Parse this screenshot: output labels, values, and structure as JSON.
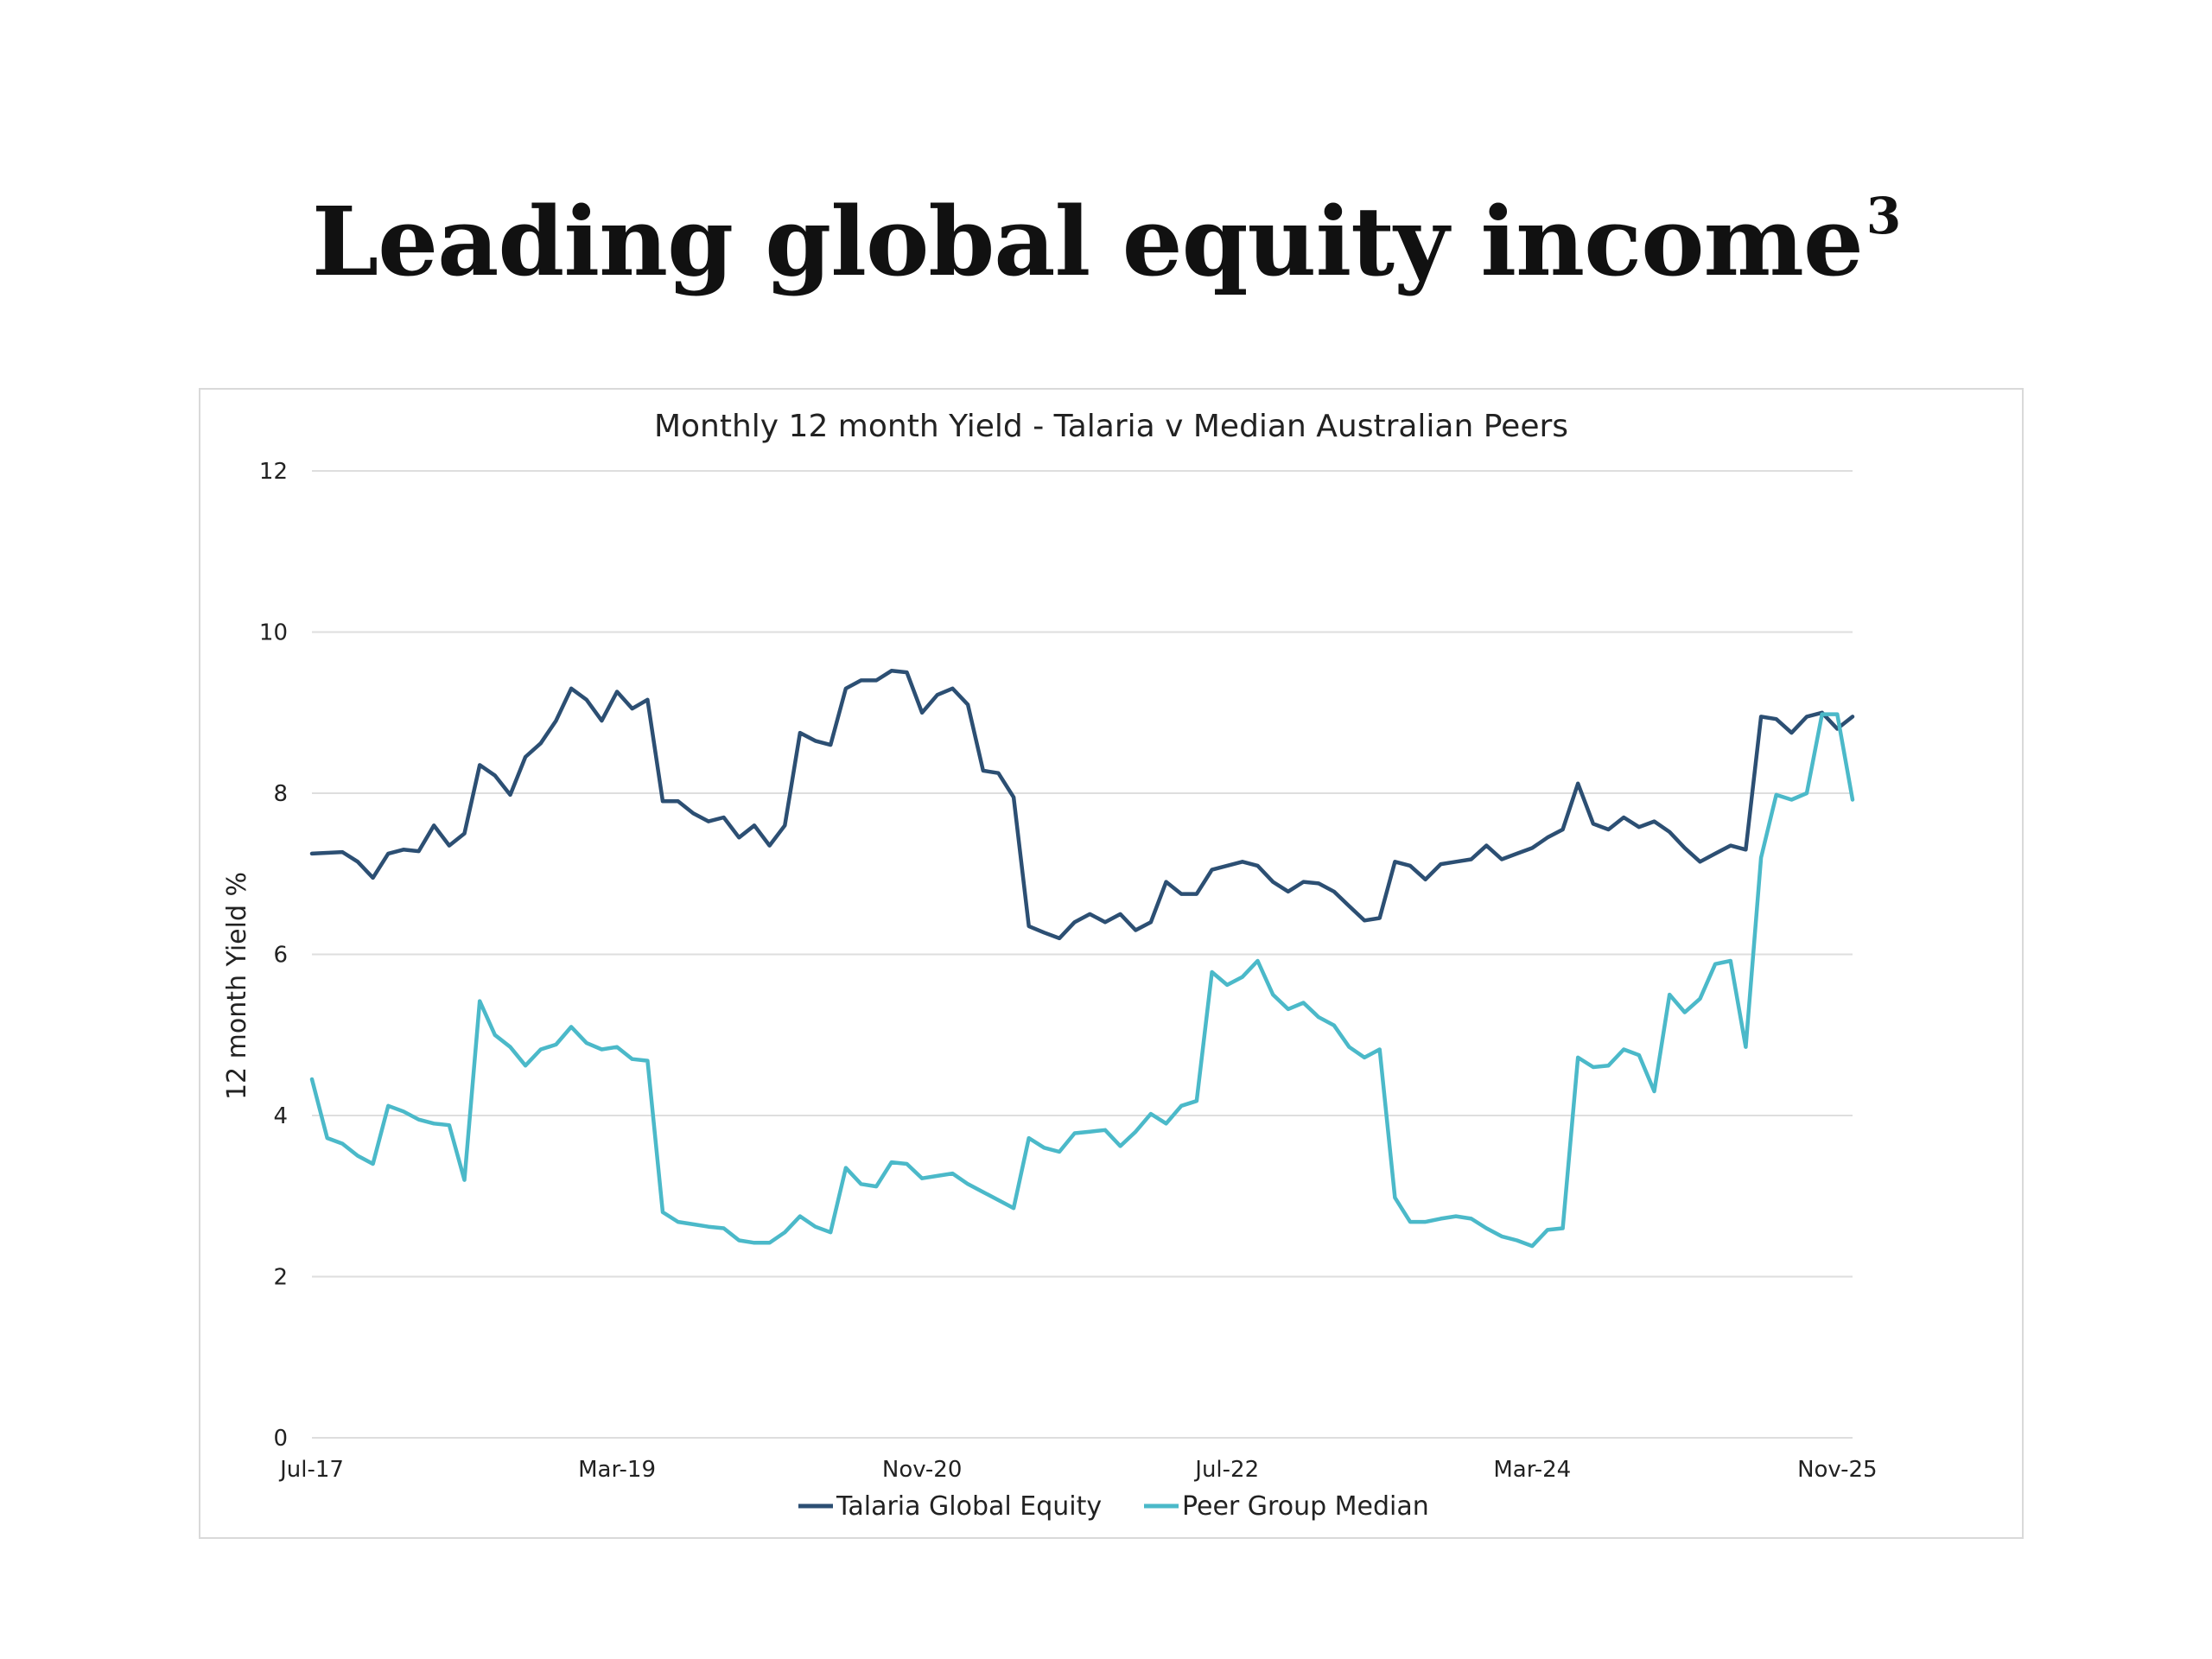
{
  "headline": {
    "text": "Leading global equity income",
    "superscript": "3"
  },
  "chart_data": {
    "type": "line",
    "title": "Monthly 12 month Yield - Talaria v Median Australian Peers",
    "ylabel": "12 month Yield %",
    "xlabel": "",
    "ylim": [
      0,
      12
    ],
    "yticks": [
      0,
      2,
      4,
      6,
      8,
      10,
      12
    ],
    "x_tick_labels": [
      {
        "index": 0,
        "label": "Jul-17"
      },
      {
        "index": 20,
        "label": "Mar-19"
      },
      {
        "index": 40,
        "label": "Nov-20"
      },
      {
        "index": 60,
        "label": "Jul-22"
      },
      {
        "index": 80,
        "label": "Mar-24"
      },
      {
        "index": 100,
        "label": "Nov-25"
      }
    ],
    "x_range": [
      "Jul-17",
      "Nov-25"
    ],
    "grid": "horizontal",
    "legend": "bottom",
    "series": [
      {
        "name": "Talaria Global Equity",
        "color": "#2c4f73",
        "values": [
          7.25,
          7.26,
          7.27,
          7.15,
          6.95,
          7.25,
          7.3,
          7.28,
          7.6,
          7.35,
          7.5,
          8.35,
          8.22,
          7.98,
          8.45,
          8.62,
          8.9,
          9.3,
          9.16,
          8.9,
          9.26,
          9.05,
          9.16,
          7.9,
          7.9,
          7.75,
          7.65,
          7.7,
          7.45,
          7.6,
          7.35,
          7.6,
          8.75,
          8.65,
          8.6,
          9.3,
          9.4,
          9.4,
          9.52,
          9.5,
          9.0,
          9.22,
          9.3,
          9.1,
          8.28,
          8.25,
          7.95,
          6.35,
          6.27,
          6.2,
          6.4,
          6.5,
          6.4,
          6.5,
          6.3,
          6.4,
          6.9,
          6.75,
          6.75,
          7.05,
          7.1,
          7.15,
          7.1,
          6.9,
          6.78,
          6.9,
          6.88,
          6.78,
          6.6,
          6.42,
          6.45,
          7.15,
          7.1,
          6.93,
          7.12,
          7.15,
          7.18,
          7.35,
          7.18,
          7.25,
          7.32,
          7.45,
          7.55,
          8.12,
          7.62,
          7.55,
          7.7,
          7.58,
          7.65,
          7.52,
          7.32,
          7.15,
          7.25,
          7.35,
          7.3,
          8.95,
          8.92,
          8.75,
          8.95,
          9.0,
          8.8,
          8.95
        ]
      },
      {
        "name": "Peer Group Median",
        "color": "#4bb9c9",
        "values": [
          4.45,
          3.72,
          3.65,
          3.5,
          3.4,
          4.12,
          4.05,
          3.95,
          3.9,
          3.88,
          3.2,
          5.42,
          5.0,
          4.85,
          4.62,
          4.82,
          4.88,
          5.1,
          4.9,
          4.82,
          4.85,
          4.7,
          4.68,
          2.8,
          2.68,
          2.65,
          2.62,
          2.6,
          2.45,
          2.42,
          2.42,
          2.55,
          2.75,
          2.62,
          2.55,
          3.35,
          3.15,
          3.12,
          3.42,
          3.4,
          3.22,
          3.25,
          3.28,
          3.15,
          3.05,
          2.95,
          2.85,
          3.72,
          3.6,
          3.55,
          3.78,
          3.8,
          3.82,
          3.62,
          3.8,
          4.02,
          3.9,
          4.12,
          4.18,
          5.78,
          5.62,
          5.72,
          5.92,
          5.5,
          5.32,
          5.4,
          5.22,
          5.12,
          4.85,
          4.72,
          4.82,
          2.98,
          2.68,
          2.68,
          2.72,
          2.75,
          2.72,
          2.6,
          2.5,
          2.45,
          2.38,
          2.58,
          2.6,
          4.72,
          4.6,
          4.62,
          4.82,
          4.75,
          4.3,
          5.5,
          5.28,
          5.45,
          5.88,
          5.92,
          4.85,
          7.2,
          7.98,
          7.92,
          8.0,
          8.98,
          8.98,
          7.92
        ]
      }
    ]
  }
}
